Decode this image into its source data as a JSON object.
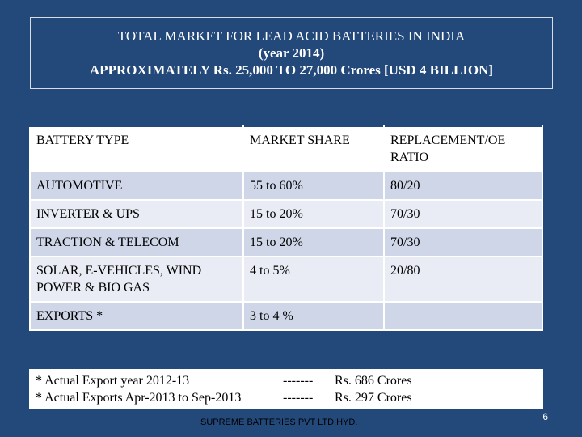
{
  "title": {
    "line1": "TOTAL MARKET FOR LEAD ACID BATTERIES IN INDIA",
    "line2": "(year 2014)",
    "line3": "APPROXIMATELY Rs. 25,000 TO 27,000 Crores [USD 4 BILLION]"
  },
  "table": {
    "headers": [
      "BATTERY TYPE",
      "MARKET SHARE",
      "REPLACEMENT/OE RATIO"
    ],
    "rows": [
      [
        "AUTOMOTIVE",
        "55 to 60%",
        "80/20"
      ],
      [
        "INVERTER & UPS",
        "15 to 20%",
        "70/30"
      ],
      [
        "TRACTION & TELECOM",
        "15 to 20%",
        "70/30"
      ],
      [
        "SOLAR, E-VEHICLES, WIND POWER & BIO GAS",
        "4 to 5%",
        "20/80"
      ],
      [
        "EXPORTS *",
        "3 to 4 %",
        ""
      ]
    ]
  },
  "notes": [
    {
      "text": "*  Actual Export year 2012-13",
      "dash": "-------",
      "value": "Rs. 686 Crores"
    },
    {
      "text": "*  Actual Exports Apr-2013 to Sep-2013",
      "dash": "-------",
      "value": "Rs. 297 Crores"
    }
  ],
  "footer": "SUPREME BATTERIES PVT LTD,HYD.",
  "page_number": "6",
  "colors": {
    "background": "#23497a",
    "row_dark": "#cfd6e8",
    "row_light": "#e9ecf5"
  }
}
